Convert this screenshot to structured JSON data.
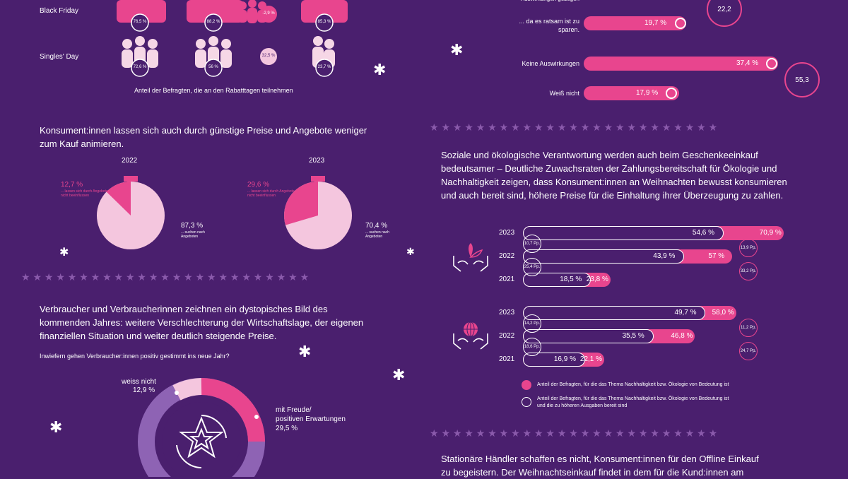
{
  "colors": {
    "background": "#4a1f6e",
    "pink": "#e8458e",
    "light_pink": "#f4c6de",
    "pale": "#f6d7e6"
  },
  "events": {
    "black_friday": {
      "label": "Black Friday",
      "values": [
        "76,5 %",
        "88,2 %",
        "85,3 %"
      ],
      "change": "-2,9 %"
    },
    "singles_day": {
      "label": "Singles' Day",
      "values": [
        "72,6 %",
        "56 %",
        "23,7 %"
      ],
      "change": "32,5 %"
    },
    "caption": "Anteil der Befragten, die an den Rabatttagen teilnehmen"
  },
  "savings": {
    "row_top": {
      "label": "... da es ratsam ist zu sparen.",
      "value": "19,7 %"
    },
    "row_mid": {
      "label": "Keine Auswirkungen",
      "value": "37,4 %"
    },
    "row_bottom": {
      "label": "Weiß nicht",
      "value": "17,9 %"
    },
    "ring_top": "22,2",
    "ring_mid": "55,3"
  },
  "offers": {
    "heading": "Konsument:innen lassen sich auch durch günstige Preise und Angebote weniger zum Kauf animieren.",
    "y2022": {
      "year": "2022",
      "small_pct": "12,7 %",
      "small_text": "... lassen sich durch Angebote nicht beeinflussen",
      "big_pct": "87,3 %",
      "big_text": "... suchen nach Angeboten"
    },
    "y2023": {
      "year": "2023",
      "small_pct": "29,6 %",
      "small_text": "... lassen sich durch Angebote nicht beeinflussen",
      "big_pct": "70,4 %",
      "big_text": "... suchen nach Angeboten"
    }
  },
  "dystopia": {
    "heading": "Verbraucher und Verbraucherinnen zeichnen ein dystopisches Bild des kommenden Jahres: weitere Verschlechterung der Wirtschaftslage, der eigenen finanziellen Situation und weiter deutlich steigende Preise.",
    "question": "Inwiefern gehen Verbraucher:innen positiv gestimmt ins neue Jahr?",
    "weiss_label": "weiss nicht",
    "weiss_value": "12,9 %",
    "freude_label1": "mit Freude/",
    "freude_label2": "positiven Erwartungen",
    "freude_value": "29,5 %"
  },
  "sustain": {
    "heading": "Soziale und ökologische Verantwortung werden auch beim Geschenkeeinkauf bedeutsamer – Deutliche Zuwachsraten der Zahlungsbereitschaft für Ökologie und Nachhaltigkeit zeigen, dass Konsument:innen an Weihnachten bewusst konsumieren und auch bereit sind, höhere Preise für die Einhaltung ihrer Überzeugung zu zahlen.",
    "group1": {
      "years": [
        "2023",
        "2022",
        "2021"
      ],
      "pay": [
        "54,6 %",
        "43,9 %",
        "18,5 %"
      ],
      "important": [
        "70,9 %",
        "57 %",
        "23,8 %"
      ],
      "left_pp": [
        "10,7 Pp.",
        "25,4 Pp."
      ],
      "right_pp": [
        "13,9 Pp.",
        "33,2 Pp."
      ]
    },
    "group2": {
      "years": [
        "2023",
        "2022",
        "2021"
      ],
      "pay": [
        "49,7 %",
        "35,5 %",
        "16,9 %"
      ],
      "important": [
        "58,0 %",
        "46,8 %",
        "22,1 %"
      ],
      "left_pp": [
        "14,2 Pp.",
        "18,6 Pp."
      ],
      "right_pp": [
        "11,2 Pp.",
        "24,7 Pp."
      ]
    },
    "legend1": "Anteil der Befragten, für die das Thema Nachhaltigkeit bzw. Ökologie von Bedeutung ist",
    "legend2a": "Anteil der Befragten, für die das Thema Nachhaltigkeit bzw. Ökologie von Bedeutung ist",
    "legend2b": "und die zu höheren Ausgaben bereit sind"
  },
  "retail": {
    "line1": "Stationäre Händler schaffen es nicht, Konsument:innen für den Offline Einkauf",
    "line2": "zu begeistern. Der Weihnachtseinkauf findet in dem für die Kund:innen am"
  },
  "chart_data": [
    {
      "type": "pie",
      "title": "2022",
      "series": [
        {
          "name": "... suchen nach Angeboten",
          "values": [
            87.3
          ]
        },
        {
          "name": "... lassen sich durch Angebote nicht beeinflussen",
          "values": [
            12.7
          ]
        }
      ]
    },
    {
      "type": "pie",
      "title": "2023",
      "series": [
        {
          "name": "... suchen nach Angeboten",
          "values": [
            70.4
          ]
        },
        {
          "name": "... lassen sich durch Angebote nicht beeinflussen",
          "values": [
            29.6
          ]
        }
      ]
    },
    {
      "type": "bar",
      "categories": [
        "2023",
        "2022",
        "2021"
      ],
      "series": [
        {
          "name": "Anteil der Befragten, für die das Thema Nachhaltigkeit bzw. Ökologie von Bedeutung ist",
          "values": [
            70.9,
            57,
            23.8
          ]
        },
        {
          "name": "Anteil der Befragten, für die das Thema Nachhaltigkeit bzw. Ökologie von Bedeutung ist und die zu höheren Ausgaben bereit sind",
          "values": [
            54.6,
            43.9,
            18.5
          ]
        }
      ]
    },
    {
      "type": "bar",
      "categories": [
        "2023",
        "2022",
        "2021"
      ],
      "series": [
        {
          "name": "Anteil der Befragten, für die das Thema Nachhaltigkeit bzw. Ökologie von Bedeutung ist",
          "values": [
            58.0,
            46.8,
            22.1
          ]
        },
        {
          "name": "Anteil der Befragten, für die das Thema Nachhaltigkeit bzw. Ökologie von Bedeutung ist und die zu höheren Ausgaben bereit sind",
          "values": [
            49.7,
            35.5,
            16.9
          ]
        }
      ]
    },
    {
      "type": "bar",
      "categories": [
        "... da es ratsam ist zu sparen.",
        "Keine Auswirkungen",
        "Weiß nicht"
      ],
      "values": [
        19.7,
        37.4,
        17.9
      ]
    }
  ]
}
